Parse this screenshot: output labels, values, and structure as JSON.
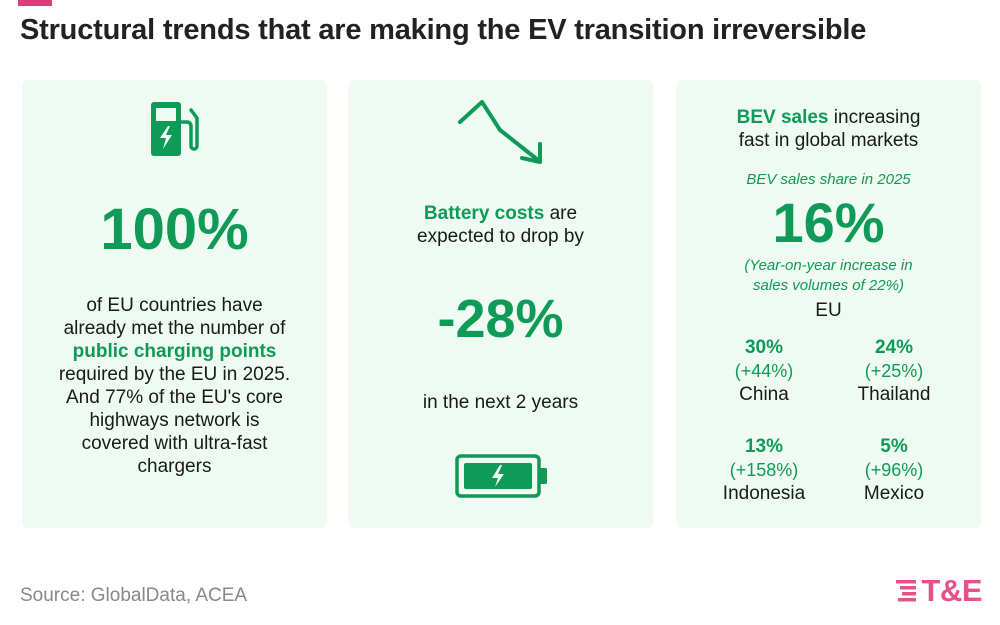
{
  "title": "Structural trends that are making the EV transition irreversible",
  "card1": {
    "icon": "ev-charger-icon",
    "big": "100%",
    "lines": [
      "of EU countries have",
      "already met the number of"
    ],
    "highlight": "public charging points",
    "lines2": [
      "required by the EU in 2025.",
      "And 77% of the EU's core",
      "highways network is",
      "covered with ultra-fast",
      "chargers"
    ]
  },
  "card2": {
    "icon_top": "downtrend-arrow-icon",
    "highlight": "Battery costs",
    "rest1": " are",
    "rest2": "expected to drop by",
    "big": "-28%",
    "sub": "in the next 2 years",
    "icon_bottom": "battery-charging-icon"
  },
  "card3": {
    "highlight": "BEV sales",
    "rest1": " increasing",
    "rest2": "fast in global markets",
    "share_label": "BEV sales share in 2025",
    "big": "16%",
    "note1": "(Year-on-year increase in",
    "note2": "sales volumes of 22%)",
    "region": "EU",
    "countries": [
      {
        "pct": "30%",
        "inc": "(+44%)",
        "name": "China"
      },
      {
        "pct": "24%",
        "inc": "(+25%)",
        "name": "Thailand"
      },
      {
        "pct": "13%",
        "inc": "(+158%)",
        "name": "Indonesia"
      },
      {
        "pct": "5%",
        "inc": "(+96%)",
        "name": "Mexico"
      }
    ]
  },
  "source": "Source: GlobalData, ACEA",
  "logo": {
    "text": "T&E",
    "color": "#e8508a"
  },
  "colors": {
    "accent": "#0f9a57",
    "card_bg": "#eefaf2"
  }
}
